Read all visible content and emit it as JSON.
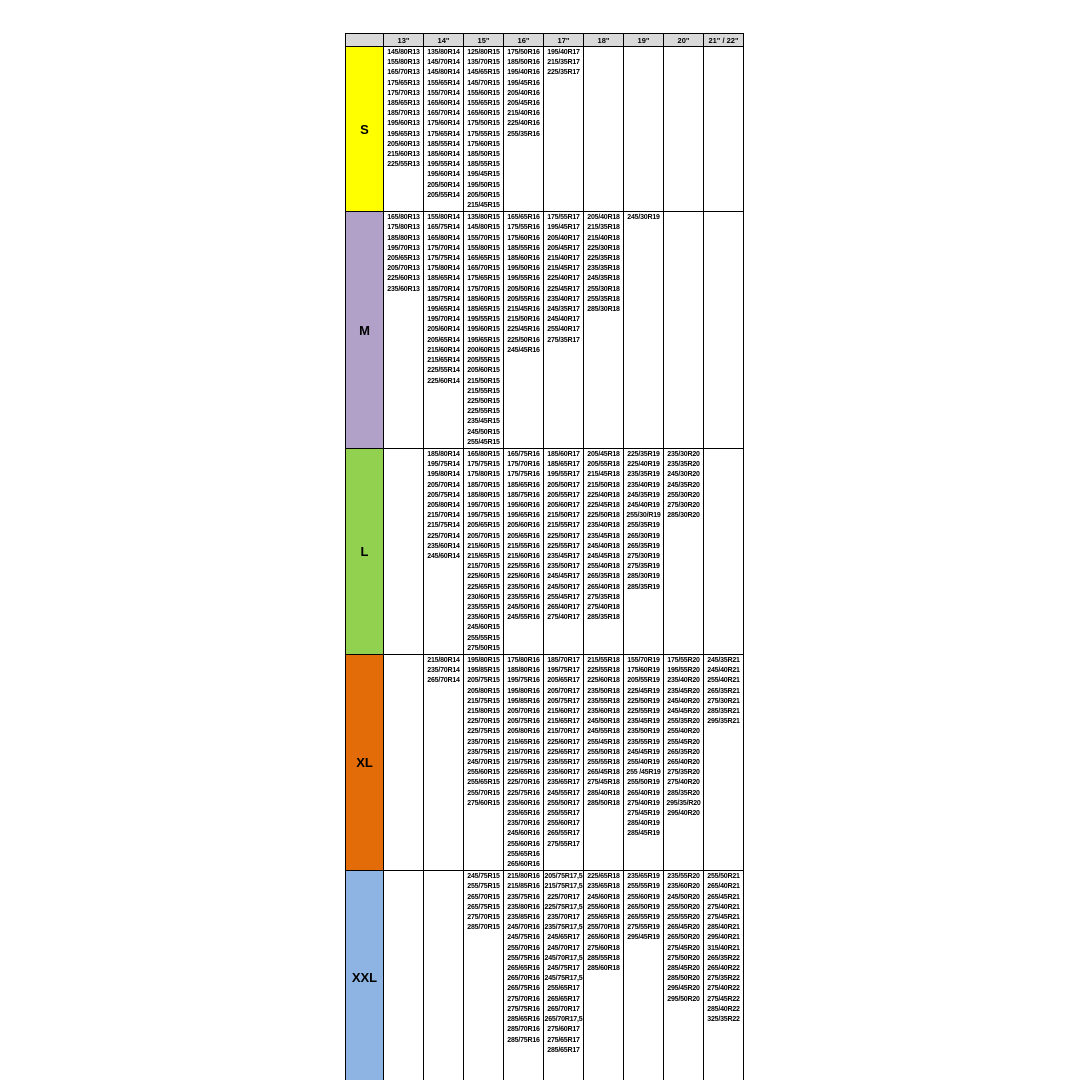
{
  "colors": {
    "header_bg": "#d9d9d9",
    "border": "#000000",
    "page_bg": "#ffffff",
    "row_s": "#ffff00",
    "row_m": "#b1a0c7",
    "row_l": "#92d050",
    "row_xl": "#e36c09",
    "row_xxl": "#8db4e2"
  },
  "table": {
    "corner_label": "",
    "columns": [
      "13\"",
      "14\"",
      "15\"",
      "16\"",
      "17\"",
      "18\"",
      "19\"",
      "20\"",
      "21\" / 22\""
    ],
    "rows": [
      {
        "label": "S",
        "color": "#ffff00",
        "cells": [
          [
            "145/80R13",
            "155/80R13",
            "165/70R13",
            "175/65R13",
            "175/70R13",
            "185/65R13",
            "185/70R13",
            "195/60R13",
            "195/65R13",
            "205/60R13",
            "215/60R13",
            "225/55R13"
          ],
          [
            "135/80R14",
            "145/70R14",
            "145/80R14",
            "155/65R14",
            "155/70R14",
            "165/60R14",
            "165/70R14",
            "175/60R14",
            "175/65R14",
            "185/55R14",
            "185/60R14",
            "195/55R14",
            "195/60R14",
            "205/50R14",
            "205/55R14"
          ],
          [
            "125/80R15",
            "135/70R15",
            "145/65R15",
            "145/70R15",
            "155/60R15",
            "155/65R15",
            "165/60R15",
            "175/50R15",
            "175/55R15",
            "175/60R15",
            "185/50R15",
            "185/55R15",
            "195/45R15",
            "195/50R15",
            "205/50R15",
            "215/45R15"
          ],
          [
            "175/50R16",
            "185/50R16",
            "195/40R16",
            "195/45R16",
            "205/40R16",
            "205/45R16",
            "215/40R16",
            "225/40R16",
            "255/35R16"
          ],
          [
            "195/40R17",
            "215/35R17",
            "225/35R17"
          ],
          [],
          [],
          [],
          []
        ]
      },
      {
        "label": "M",
        "color": "#b1a0c7",
        "cells": [
          [
            "165/80R13",
            "175/80R13",
            "185/80R13",
            "195/70R13",
            "205/65R13",
            "205/70R13",
            "225/60R13",
            "235/60R13"
          ],
          [
            "155/80R14",
            "165/75R14",
            "165/80R14",
            "175/70R14",
            "175/75R14",
            "175/80R14",
            "185/65R14",
            "185/70R14",
            "185/75R14",
            "195/65R14",
            "195/70R14",
            "205/60R14",
            "205/65R14",
            "215/60R14",
            "215/65R14",
            "225/55R14",
            "225/60R14"
          ],
          [
            "135/80R15",
            "145/80R15",
            "155/70R15",
            "155/80R15",
            "165/65R15",
            "165/70R15",
            "175/65R15",
            "175/70R15",
            "185/60R15",
            "185/65R15",
            "195/55R15",
            "195/60R15",
            "195/65R15",
            "200/60R15",
            "205/55R15",
            "205/60R15",
            "215/50R15",
            "215/55R15",
            "225/50R15",
            "225/55R15",
            "235/45R15",
            "245/50R15",
            "255/45R15"
          ],
          [
            "165/65R16",
            "175/55R16",
            "175/60R16",
            "185/55R16",
            "185/60R16",
            "195/50R16",
            "195/55R16",
            "205/50R16",
            "205/55R16",
            "215/45R16",
            "215/50R16",
            "225/45R16",
            "225/50R16",
            "245/45R16"
          ],
          [
            "175/55R17",
            "195/45R17",
            "205/40R17",
            "205/45R17",
            "215/40R17",
            "215/45R17",
            "225/40R17",
            "225/45R17",
            "235/40R17",
            "245/35R17",
            "245/40R17",
            "255/40R17",
            "275/35R17"
          ],
          [
            "205/40R18",
            "215/35R18",
            "215/40R18",
            "225/30R18",
            "225/35R18",
            "235/35R18",
            "245/35R18",
            "255/30R18",
            "255/35R18",
            "285/30R18"
          ],
          [
            "245/30R19"
          ],
          [],
          []
        ]
      },
      {
        "label": "L",
        "color": "#92d050",
        "cells": [
          [],
          [
            "185/80R14",
            "195/75R14",
            "195/80R14",
            "205/70R14",
            "205/75R14",
            "205/80R14",
            "215/70R14",
            "215/75R14",
            "225/70R14",
            "235/60R14",
            "245/60R14"
          ],
          [
            "165/80R15",
            "175/75R15",
            "175/80R15",
            "185/70R15",
            "185/80R15",
            "195/70R15",
            "195/75R15",
            "205/65R15",
            "205/70R15",
            "215/60R15",
            "215/65R15",
            "215/70R15",
            "225/60R15",
            "225/65R15",
            "230/60R15",
            "235/55R15",
            "235/60R15",
            "245/60R15",
            "255/55R15",
            "275/50R15"
          ],
          [
            "165/75R16",
            "175/70R16",
            "175/75R16",
            "185/65R16",
            "185/75R16",
            "195/60R16",
            "195/65R16",
            "205/60R16",
            "205/65R16",
            "215/55R16",
            "215/60R16",
            "225/55R16",
            "225/60R16",
            "235/50R16",
            "235/55R16",
            "245/50R16",
            "245/55R16"
          ],
          [
            "185/60R17",
            "185/65R17",
            "195/55R17",
            "205/50R17",
            "205/55R17",
            "205/60R17",
            "215/50R17",
            "215/55R17",
            "225/50R17",
            "225/55R17",
            "235/45R17",
            "235/50R17",
            "245/45R17",
            "245/50R17",
            "255/45R17",
            "265/40R17",
            "275/40R17"
          ],
          [
            "205/45R18",
            "205/55R18",
            "215/45R18",
            "215/50R18",
            "225/40R18",
            "225/45R18",
            "225/50R18",
            "235/40R18",
            "235/45R18",
            "245/40R18",
            "245/45R18",
            "255/40R18",
            "265/35R18",
            "265/40R18",
            "275/35R18",
            "275/40R18",
            "285/35R18"
          ],
          [
            "225/35R19",
            "225/40R19",
            "235/35R19",
            "235/40R19",
            "245/35R19",
            "245/40R19",
            "255/30/R19",
            "255/35R19",
            "265/30R19",
            "265/35R19",
            "275/30R19",
            "275/35R19",
            "285/30R19",
            "285/35R19"
          ],
          [
            "235/30R20",
            "235/35R20",
            "245/30R20",
            "245/35R20",
            "255/30R20",
            "275/30R20",
            "285/30R20"
          ],
          []
        ]
      },
      {
        "label": "XL",
        "color": "#e36c09",
        "cells": [
          [],
          [
            "215/80R14",
            "235/70R14",
            "265/70R14"
          ],
          [
            "195/80R15",
            "195/85R15",
            "205/75R15",
            "205/80R15",
            "215/75R15",
            "215/80R15",
            "225/70R15",
            "225/75R15",
            "235/70R15",
            "235/75R15",
            "245/70R15",
            "255/60R15",
            "255/65R15",
            "255/70R15",
            "275/60R15"
          ],
          [
            "175/80R16",
            "185/80R16",
            "195/75R16",
            "195/80R16",
            "195/85R16",
            "205/70R16",
            "205/75R16",
            "205/80R16",
            "215/65R16",
            "215/70R16",
            "215/75R16",
            "225/65R16",
            "225/70R16",
            "225/75R16",
            "235/60R16",
            "235/65R16",
            "235/70R16",
            "245/60R16",
            "255/60R16",
            "255/65R16",
            "265/60R16"
          ],
          [
            "185/70R17",
            "195/75R17",
            "205/65R17",
            "205/70R17",
            "205/75R17",
            "215/60R17",
            "215/65R17",
            "215/70R17",
            "225/60R17",
            "225/65R17",
            "235/55R17",
            "235/60R17",
            "235/65R17",
            "245/55R17",
            "255/50R17",
            "255/55R17",
            "255/60R17",
            "265/55R17",
            "275/55R17"
          ],
          [
            "215/55R18",
            "225/55R18",
            "225/60R18",
            "235/50R18",
            "235/55R18",
            "235/60R18",
            "245/50R18",
            "245/55R18",
            "255/45R18",
            "255/50R18",
            "255/55R18",
            "265/45R18",
            "275/45R18",
            "285/40R18",
            "285/50R18"
          ],
          [
            "155/70R19",
            "175/60R19",
            "205/55R19",
            "225/45R19",
            "225/50R19",
            "225/55R19",
            "235/45R19",
            "235/50R19",
            "235/55R19",
            "245/45R19",
            "255/40R19",
            "255 /45R19",
            "255/50R19",
            "265/40R19",
            "275/40R19",
            "275/45R19",
            "285/40R19",
            "285/45R19"
          ],
          [
            "175/55R20",
            "195/55R20",
            "235/40R20",
            "235/45R20",
            "245/40R20",
            "245/45R20",
            "255/35R20",
            "255/40R20",
            "255/45R20",
            "265/35R20",
            "265/40R20",
            "275/35R20",
            "275/40R20",
            "285/35R20",
            "295/35/R20",
            "295/40R20"
          ],
          [
            "245/35R21",
            "245/40R21",
            "255/40R21",
            "265/35R21",
            "275/30R21",
            "285/35R21",
            "295/35R21"
          ]
        ]
      },
      {
        "label": "XXL",
        "color": "#8db4e2",
        "cells": [
          [],
          [],
          [
            "245/75R15",
            "255/75R15",
            "265/70R15",
            "265/75R15",
            "275/70R15",
            "285/70R15"
          ],
          [
            "215/80R16",
            "215/85R16",
            "235/75R16",
            "235/80R16",
            "235/85R16",
            "245/70R16",
            "245/75R16",
            "255/70R16",
            "255/75R16",
            "265/65R16",
            "265/70R16",
            "265/75R16",
            "275/70R16",
            "275/75R16",
            "285/65R16",
            "285/70R16",
            "285/75R16"
          ],
          [
            "205/75R17,5",
            "215/75R17,5",
            "225/70R17",
            "225/75R17,5",
            "235/70R17",
            "235/75R17,5",
            "245/65R17",
            "245/70R17",
            "245/70R17,5",
            "245/75R17",
            "245/75R17,5",
            "255/65R17",
            "265/65R17",
            "265/70R17",
            "265/70R17,5",
            "275/60R17",
            "275/65R17",
            "285/65R17"
          ],
          [
            "225/65R18",
            "235/65R18",
            "245/60R18",
            "255/60R18",
            "255/65R18",
            "255/70R18",
            "265/60R18",
            "275/60R18",
            "285/55R18",
            "285/60R18"
          ],
          [
            "235/65R19",
            "255/55R19",
            "255/60R19",
            "265/50R19",
            "265/55R19",
            "275/55R19",
            "295/45R19"
          ],
          [
            "235/55R20",
            "235/60R20",
            "245/50R20",
            "255/50R20",
            "255/55R20",
            "265/45R20",
            "265/50R20",
            "275/45R20",
            "275/50R20",
            "285/45R20",
            "285/50R20",
            "295/45R20",
            "295/50R20"
          ],
          [
            "255/50R21",
            "265/40R21",
            "265/45R21",
            "275/40R21",
            "275/45R21",
            "285/40R21",
            "295/40R21",
            "315/40R21",
            "265/35R22",
            "265/40R22",
            "275/35R22",
            "275/40R22",
            "275/45R22",
            "285/40R22",
            "325/35R22"
          ]
        ]
      }
    ]
  }
}
